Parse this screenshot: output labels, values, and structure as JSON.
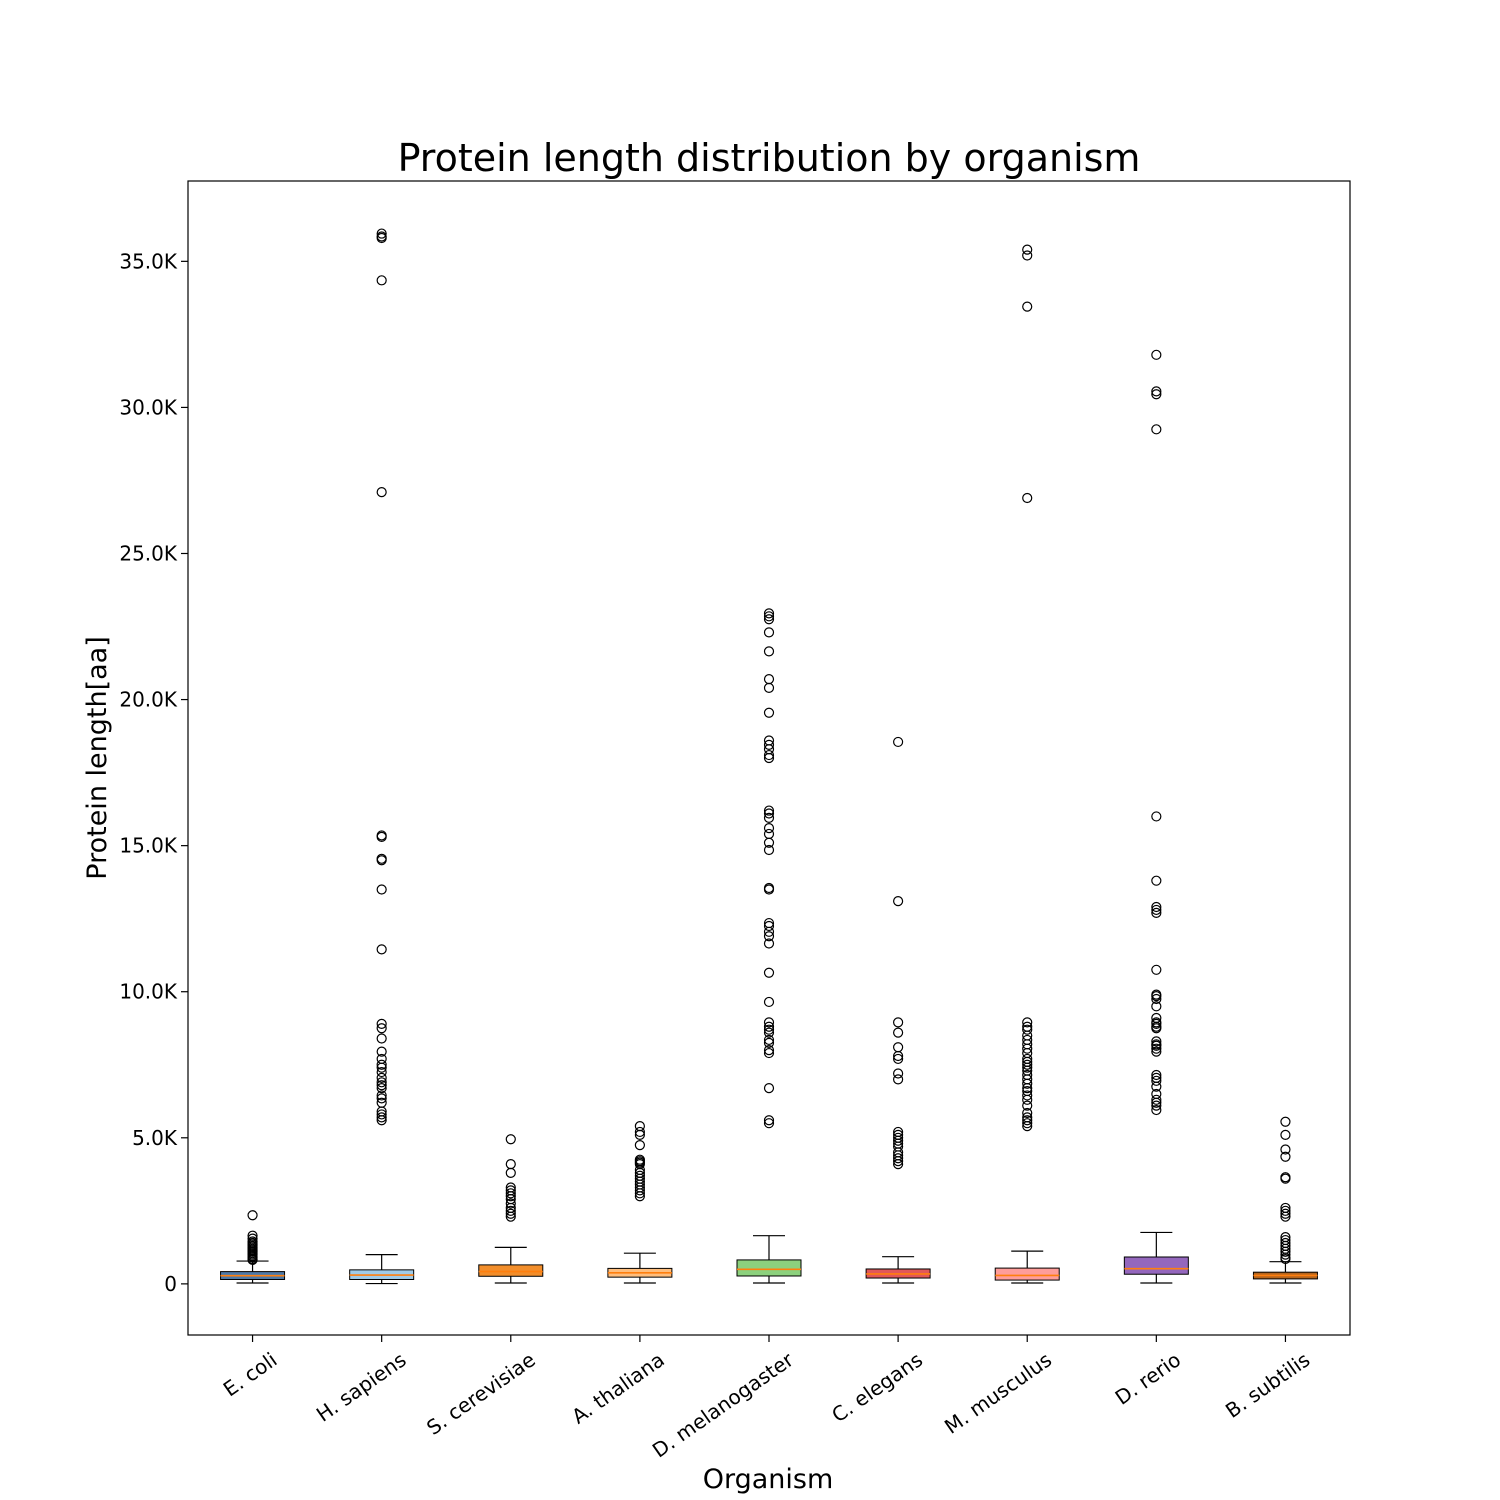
{
  "chart_data": {
    "type": "boxplot",
    "title": "Protein length distribution by organism",
    "xlabel": "Organism",
    "ylabel": "Protein length[aa]",
    "ylim": [
      -1750,
      37750
    ],
    "yticks": [
      0,
      5000,
      10000,
      15000,
      20000,
      25000,
      30000,
      35000
    ],
    "ytick_labels": [
      "0",
      "5.0K",
      "10.0K",
      "15.0K",
      "20.0K",
      "25.0K",
      "30.0K",
      "35.0K"
    ],
    "grid": false,
    "series": [
      {
        "category": "E. coli",
        "color": "#4e79a7",
        "whisker_low": 30,
        "q1": 150,
        "median": 280,
        "q3": 420,
        "whisker_high": 780,
        "outliers": [
          2350,
          1650,
          1550,
          1450,
          1400,
          1350,
          1300,
          1250,
          1200,
          1150,
          1100,
          1050,
          1000,
          950,
          900,
          850,
          820
        ]
      },
      {
        "category": "H. sapiens",
        "color": "#a0cbe8",
        "whisker_low": 10,
        "q1": 150,
        "median": 300,
        "q3": 480,
        "whisker_high": 1000,
        "outliers": [
          35950,
          35850,
          35800,
          34350,
          27100,
          15350,
          15300,
          14550,
          14500,
          13500,
          11450,
          8900,
          8750,
          8400,
          7950,
          7700,
          7500,
          7400,
          7250,
          7050,
          6900,
          6800,
          6700,
          6450,
          6350,
          6200,
          5900,
          5800,
          5700,
          5600
        ]
      },
      {
        "category": "S. cerevisiae",
        "color": "#f28e2b",
        "whisker_low": 30,
        "q1": 260,
        "median": 420,
        "q3": 650,
        "whisker_high": 1250,
        "outliers": [
          4950,
          4100,
          3800,
          3300,
          3200,
          3100,
          3000,
          2900,
          2750,
          2600,
          2500,
          2400,
          2300
        ]
      },
      {
        "category": "A. thaliana",
        "color": "#ffbe7d",
        "whisker_low": 30,
        "q1": 230,
        "median": 380,
        "q3": 530,
        "whisker_high": 1050,
        "outliers": [
          5400,
          5200,
          5100,
          4750,
          4250,
          4200,
          4150,
          4100,
          3900,
          3800,
          3700,
          3600,
          3500,
          3400,
          3300,
          3200,
          3100,
          3000
        ]
      },
      {
        "category": "D. melanogaster",
        "color": "#8cd17d",
        "whisker_low": 30,
        "q1": 270,
        "median": 500,
        "q3": 820,
        "whisker_high": 1650,
        "outliers": [
          22950,
          22850,
          22750,
          22300,
          21650,
          20700,
          20400,
          19550,
          18600,
          18450,
          18300,
          18100,
          18000,
          16200,
          16100,
          15950,
          15600,
          15400,
          15100,
          14850,
          13550,
          13500,
          12350,
          12250,
          12050,
          11900,
          11650,
          10650,
          9650,
          8950,
          8800,
          8700,
          8600,
          8350,
          8250,
          8000,
          7900,
          6700,
          5600,
          5500
        ]
      },
      {
        "category": "C. elegans",
        "color": "#e15759",
        "whisker_low": 30,
        "q1": 200,
        "median": 340,
        "q3": 510,
        "whisker_high": 930,
        "outliers": [
          18550,
          13100,
          8950,
          8600,
          8100,
          7800,
          7700,
          7200,
          7000,
          5200,
          5100,
          5000,
          4900,
          4800,
          4700,
          4500,
          4400,
          4300,
          4200,
          4100
        ]
      },
      {
        "category": "M. musculus",
        "color": "#ff9d9a",
        "whisker_low": 30,
        "q1": 130,
        "median": 290,
        "q3": 540,
        "whisker_high": 1120,
        "outliers": [
          35400,
          35200,
          33450,
          26900,
          8950,
          8800,
          8700,
          8500,
          8350,
          8200,
          8050,
          7900,
          7700,
          7600,
          7500,
          7400,
          7300,
          7150,
          7000,
          6850,
          6700,
          6600,
          6450,
          6300,
          6100,
          5850,
          5700,
          5600,
          5500,
          5400
        ]
      },
      {
        "category": "D. rerio",
        "color": "#9467bd",
        "whisker_low": 30,
        "q1": 330,
        "median": 520,
        "q3": 920,
        "whisker_high": 1760,
        "outliers": [
          31800,
          30550,
          30450,
          29250,
          16000,
          13800,
          12900,
          12800,
          12700,
          10750,
          9900,
          9850,
          9750,
          9500,
          9100,
          8950,
          8900,
          8800,
          8750,
          8300,
          8200,
          8150,
          8050,
          7950,
          7150,
          7050,
          6950,
          6750,
          6500,
          6300,
          6200,
          6100,
          5950
        ]
      },
      {
        "category": "B. subtilis",
        "color": "#b5651d",
        "whisker_low": 30,
        "q1": 170,
        "median": 290,
        "q3": 400,
        "whisker_high": 760,
        "outliers": [
          5550,
          5100,
          4600,
          4350,
          3650,
          3600,
          2600,
          2500,
          2400,
          2300,
          1600,
          1500,
          1400,
          1300,
          1200,
          1100,
          1000,
          900,
          850
        ]
      }
    ]
  }
}
